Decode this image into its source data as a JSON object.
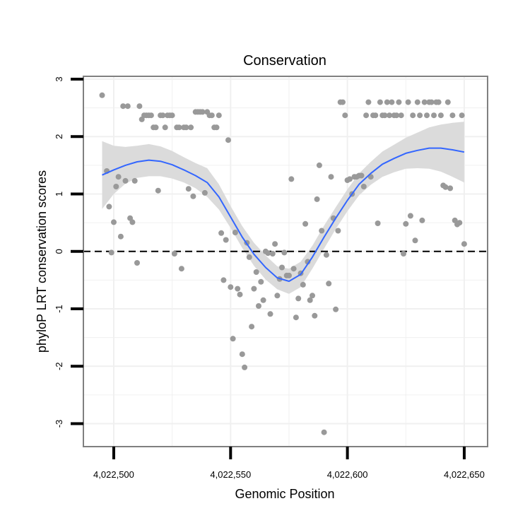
{
  "chart_data": {
    "type": "scatter",
    "title": "Conservation",
    "xlabel": "Genomic Position",
    "ylabel": "phyloP LRT conservation scores",
    "xlim": [
      4022487,
      4022660
    ],
    "ylim": [
      -3.4,
      3.05
    ],
    "x_ticks": [
      4022500,
      4022550,
      4022600,
      4022650
    ],
    "x_tick_labels": [
      "4,022,500",
      "4,022,550",
      "4,022,600",
      "4,022,650"
    ],
    "y_ticks": [
      -3,
      -2,
      -1,
      0,
      1,
      2,
      3
    ],
    "y_tick_labels": [
      "-3",
      "-2",
      "-1",
      "0",
      "1",
      "2",
      "3"
    ],
    "reference_line": {
      "y": 0,
      "style": "dashed"
    },
    "colors": {
      "points": "#999999",
      "smooth": "#3366ff",
      "band": "#d9d9d9",
      "grid": "#f0f0f0",
      "frame": "#808080",
      "reference": "#000000"
    },
    "points": [
      [
        4022495,
        2.72
      ],
      [
        4022497,
        1.4
      ],
      [
        4022498,
        0.78
      ],
      [
        4022499,
        -0.02
      ],
      [
        4022500,
        0.51
      ],
      [
        4022501,
        1.13
      ],
      [
        4022502,
        1.3
      ],
      [
        4022503,
        0.26
      ],
      [
        4022504,
        2.53
      ],
      [
        4022505,
        1.23
      ],
      [
        4022506,
        2.53
      ],
      [
        4022507,
        0.58
      ],
      [
        4022508,
        0.51
      ],
      [
        4022509,
        1.23
      ],
      [
        4022510,
        -0.2
      ],
      [
        4022511,
        2.53
      ],
      [
        4022512,
        2.3
      ],
      [
        4022513,
        2.37
      ],
      [
        4022514,
        2.37
      ],
      [
        4022515,
        2.37
      ],
      [
        4022516,
        2.37
      ],
      [
        4022517,
        2.16
      ],
      [
        4022518,
        2.16
      ],
      [
        4022519,
        1.06
      ],
      [
        4022520,
        2.37
      ],
      [
        4022521,
        2.37
      ],
      [
        4022522,
        2.16
      ],
      [
        4022523,
        2.37
      ],
      [
        4022524,
        2.37
      ],
      [
        4022525,
        2.37
      ],
      [
        4022526,
        -0.04
      ],
      [
        4022527,
        2.16
      ],
      [
        4022528,
        2.16
      ],
      [
        4022529,
        -0.3
      ],
      [
        4022530,
        2.16
      ],
      [
        4022531,
        2.16
      ],
      [
        4022532,
        1.09
      ],
      [
        4022533,
        2.16
      ],
      [
        4022534,
        0.96
      ],
      [
        4022535,
        2.43
      ],
      [
        4022536,
        2.43
      ],
      [
        4022537,
        2.43
      ],
      [
        4022538,
        2.43
      ],
      [
        4022539,
        1.02
      ],
      [
        4022540,
        2.43
      ],
      [
        4022541,
        2.37
      ],
      [
        4022542,
        2.37
      ],
      [
        4022543,
        2.16
      ],
      [
        4022544,
        2.16
      ],
      [
        4022545,
        2.37
      ],
      [
        4022546,
        0.32
      ],
      [
        4022547,
        -0.5
      ],
      [
        4022548,
        0.2
      ],
      [
        4022549,
        1.94
      ],
      [
        4022550,
        -0.62
      ],
      [
        4022551,
        -1.52
      ],
      [
        4022552,
        0.33
      ],
      [
        4022553,
        -0.65
      ],
      [
        4022554,
        -0.75
      ],
      [
        4022555,
        -1.79
      ],
      [
        4022556,
        -2.02
      ],
      [
        4022557,
        0.15
      ],
      [
        4022558,
        -0.1
      ],
      [
        4022559,
        -1.31
      ],
      [
        4022560,
        -0.65
      ],
      [
        4022561,
        -0.36
      ],
      [
        4022562,
        -0.95
      ],
      [
        4022563,
        -0.53
      ],
      [
        4022564,
        -0.85
      ],
      [
        4022565,
        0.0
      ],
      [
        4022566,
        -0.03
      ],
      [
        4022567,
        -1.09
      ],
      [
        4022568,
        -0.04
      ],
      [
        4022569,
        0.13
      ],
      [
        4022570,
        -0.77
      ],
      [
        4022571,
        -0.48
      ],
      [
        4022572,
        -0.28
      ],
      [
        4022573,
        -0.02
      ],
      [
        4022574,
        -0.42
      ],
      [
        4022575,
        -0.42
      ],
      [
        4022576,
        1.26
      ],
      [
        4022577,
        -0.3
      ],
      [
        4022578,
        -1.15
      ],
      [
        4022579,
        -0.82
      ],
      [
        4022580,
        -0.38
      ],
      [
        4022581,
        -0.58
      ],
      [
        4022582,
        0.48
      ],
      [
        4022583,
        -0.18
      ],
      [
        4022584,
        -0.85
      ],
      [
        4022585,
        -0.77
      ],
      [
        4022586,
        -1.12
      ],
      [
        4022587,
        0.91
      ],
      [
        4022588,
        1.5
      ],
      [
        4022589,
        0.36
      ],
      [
        4022590,
        -3.15
      ],
      [
        4022591,
        -0.06
      ],
      [
        4022592,
        -0.56
      ],
      [
        4022593,
        1.3
      ],
      [
        4022594,
        0.58
      ],
      [
        4022595,
        -1.01
      ],
      [
        4022596,
        0.36
      ],
      [
        4022597,
        2.6
      ],
      [
        4022598,
        2.6
      ],
      [
        4022599,
        2.37
      ],
      [
        4022600,
        1.24
      ],
      [
        4022601,
        1.26
      ],
      [
        4022602,
        1.0
      ],
      [
        4022603,
        1.3
      ],
      [
        4022604,
        1.3
      ],
      [
        4022605,
        1.32
      ],
      [
        4022606,
        1.32
      ],
      [
        4022607,
        1.13
      ],
      [
        4022608,
        2.37
      ],
      [
        4022609,
        2.6
      ],
      [
        4022610,
        1.3
      ],
      [
        4022611,
        2.37
      ],
      [
        4022612,
        2.37
      ],
      [
        4022613,
        0.49
      ],
      [
        4022614,
        2.6
      ],
      [
        4022615,
        2.37
      ],
      [
        4022616,
        2.37
      ],
      [
        4022617,
        2.6
      ],
      [
        4022618,
        2.37
      ],
      [
        4022619,
        2.6
      ],
      [
        4022620,
        2.37
      ],
      [
        4022621,
        2.37
      ],
      [
        4022622,
        2.6
      ],
      [
        4022623,
        2.37
      ],
      [
        4022624,
        -0.04
      ],
      [
        4022625,
        0.48
      ],
      [
        4022626,
        2.6
      ],
      [
        4022627,
        0.62
      ],
      [
        4022628,
        2.37
      ],
      [
        4022629,
        0.19
      ],
      [
        4022630,
        2.6
      ],
      [
        4022631,
        2.37
      ],
      [
        4022632,
        0.54
      ],
      [
        4022633,
        2.6
      ],
      [
        4022634,
        2.37
      ],
      [
        4022635,
        2.6
      ],
      [
        4022636,
        2.6
      ],
      [
        4022637,
        2.37
      ],
      [
        4022638,
        2.6
      ],
      [
        4022639,
        2.6
      ],
      [
        4022640,
        2.37
      ],
      [
        4022641,
        1.15
      ],
      [
        4022642,
        1.12
      ],
      [
        4022643,
        2.6
      ],
      [
        4022644,
        1.1
      ],
      [
        4022645,
        2.37
      ],
      [
        4022646,
        0.54
      ],
      [
        4022647,
        0.47
      ],
      [
        4022648,
        0.5
      ],
      [
        4022649,
        2.37
      ],
      [
        4022650,
        0.13
      ]
    ],
    "smooth": {
      "x": [
        4022495,
        4022500,
        4022505,
        4022510,
        4022515,
        4022520,
        4022525,
        4022530,
        4022535,
        4022540,
        4022545,
        4022550,
        4022555,
        4022560,
        4022565,
        4022570,
        4022575,
        4022580,
        4022585,
        4022590,
        4022595,
        4022600,
        4022605,
        4022610,
        4022615,
        4022620,
        4022625,
        4022630,
        4022635,
        4022640,
        4022645,
        4022650
      ],
      "y": [
        1.33,
        1.42,
        1.5,
        1.56,
        1.59,
        1.57,
        1.51,
        1.42,
        1.32,
        1.2,
        0.95,
        0.6,
        0.25,
        -0.05,
        -0.28,
        -0.46,
        -0.52,
        -0.4,
        -0.1,
        0.25,
        0.58,
        0.89,
        1.17,
        1.36,
        1.52,
        1.62,
        1.71,
        1.76,
        1.8,
        1.8,
        1.77,
        1.73
      ],
      "ci_low": [
        0.74,
        1.0,
        1.18,
        1.28,
        1.31,
        1.31,
        1.27,
        1.2,
        1.1,
        0.95,
        0.73,
        0.41,
        0.06,
        -0.25,
        -0.49,
        -0.66,
        -0.74,
        -0.62,
        -0.3,
        0.05,
        0.39,
        0.7,
        0.98,
        1.16,
        1.3,
        1.38,
        1.44,
        1.45,
        1.44,
        1.39,
        1.3,
        1.2
      ],
      "ci_high": [
        1.92,
        1.84,
        1.82,
        1.84,
        1.87,
        1.83,
        1.75,
        1.64,
        1.54,
        1.45,
        1.17,
        0.79,
        0.44,
        0.15,
        -0.07,
        -0.26,
        -0.3,
        -0.18,
        0.1,
        0.45,
        0.77,
        1.08,
        1.36,
        1.56,
        1.74,
        1.86,
        1.98,
        2.07,
        2.16,
        2.21,
        2.24,
        2.26
      ]
    }
  }
}
